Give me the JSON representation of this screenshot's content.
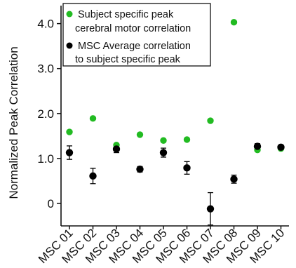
{
  "chart_data": {
    "type": "scatter",
    "ylabel": "Normalized  Peak Correlation",
    "xlabel": "",
    "categories": [
      "MSC 01",
      "MSC 02",
      "MSC 03",
      "MSC 04",
      "MSC 05",
      "MSC 06",
      "MSC 07",
      "MSC 08",
      "MSC 09",
      "MSC 10"
    ],
    "ylim": [
      -0.5,
      4.4
    ],
    "yticks": [
      "0",
      "1.0",
      "2.0",
      "3.0",
      "4.0"
    ],
    "legend_position": "top-left",
    "grid": false,
    "series": [
      {
        "name": "Subject specific peak cerebral motor correlation",
        "legend_lines": [
          "Subject specific peak",
          "cerebral motor correlation"
        ],
        "color": "#22bb22",
        "values": [
          1.59,
          1.89,
          1.3,
          1.53,
          1.4,
          1.42,
          1.84,
          4.03,
          1.19,
          1.22
        ]
      },
      {
        "name": "MSC Average correlation to subject specific peak",
        "legend_lines": [
          "MSC Average correlation",
          "to subject specific peak"
        ],
        "color": "#000000",
        "values": [
          1.13,
          0.61,
          1.21,
          0.76,
          1.13,
          0.79,
          -0.12,
          0.54,
          1.27,
          1.25
        ],
        "errors": [
          0.15,
          0.17,
          0.08,
          0.06,
          0.1,
          0.14,
          0.36,
          0.09,
          0.06,
          0.05
        ]
      }
    ]
  }
}
